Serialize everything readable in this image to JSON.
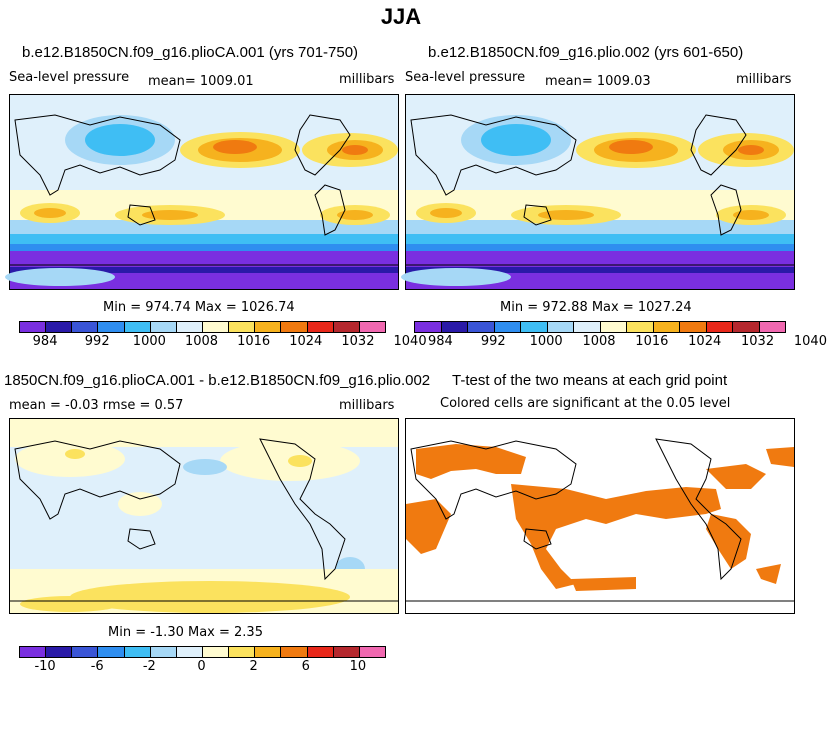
{
  "title": "JJA",
  "panels": [
    {
      "title": "b.e12.B1850CN.f09_g16.plioCA.001 (yrs 701-750)",
      "left_label": "Sea-level pressure",
      "mean_label": "mean= 1009.01",
      "units": "millibars",
      "minmax": "Min = 974.74 Max = 1026.74",
      "colorbar_ticks": [
        "984",
        "992",
        "1000",
        "1008",
        "1016",
        "1024",
        "1032",
        "1040"
      ]
    },
    {
      "title": "b.e12.B1850CN.f09_g16.plio.002 (yrs 601-650)",
      "left_label": "Sea-level pressure",
      "mean_label": "mean= 1009.03",
      "units": "millibars",
      "minmax": "Min = 972.88 Max = 1027.24",
      "colorbar_ticks": [
        "984",
        "992",
        "1000",
        "1008",
        "1016",
        "1024",
        "1032",
        "1040"
      ]
    },
    {
      "title": "1850CN.f09_g16.plioCA.001 - b.e12.B1850CN.f09_g16.plio.002",
      "left_label": "mean =   -0.03     rmse =     0.57",
      "units": "millibars",
      "minmax": "Min =  -1.30  Max =    2.35",
      "colorbar_ticks": [
        "-10",
        "-6",
        "-2",
        "0",
        "2",
        "6",
        "10"
      ]
    },
    {
      "title": "T-test of the two means at each grid point",
      "subtitle": "Colored cells are significant at the 0.05 level"
    }
  ],
  "colors": {
    "slp_bar": [
      "#7a2fe0",
      "#2a1aa8",
      "#3a55d6",
      "#2f8ef0",
      "#3fbef4",
      "#a6d8f6",
      "#dff0fb",
      "#fffbd0",
      "#fbe25e",
      "#f6b21e",
      "#f07a10",
      "#e8281a",
      "#b5282e",
      "#f068b0"
    ],
    "diff_bar": [
      "#7a2fe0",
      "#2a1aa8",
      "#3a55d6",
      "#2f8ef0",
      "#3fbef4",
      "#a6d8f6",
      "#dff0fb",
      "#fffbd0",
      "#fbe25e",
      "#f6b21e",
      "#f07a10",
      "#e8281a",
      "#b5282e",
      "#f068b0"
    ],
    "significance": "#f07a10"
  },
  "chart_data": [
    {
      "type": "heatmap",
      "title": "b.e12.B1850CN.f09_g16.plioCA.001 (yrs 701-750)",
      "field": "Sea-level pressure",
      "units": "millibars",
      "mean": 1009.01,
      "min": 974.74,
      "max": 1026.74,
      "levels": [
        984,
        992,
        1000,
        1008,
        1016,
        1024,
        1032,
        1040
      ]
    },
    {
      "type": "heatmap",
      "title": "b.e12.B1850CN.f09_g16.plio.002 (yrs 601-650)",
      "field": "Sea-level pressure",
      "units": "millibars",
      "mean": 1009.03,
      "min": 972.88,
      "max": 1027.24,
      "levels": [
        984,
        992,
        1000,
        1008,
        1016,
        1024,
        1032,
        1040
      ]
    },
    {
      "type": "heatmap",
      "title": "1850CN.f09_g16.plioCA.001 - b.e12.B1850CN.f09_g16.plio.002",
      "units": "millibars",
      "mean": -0.03,
      "rmse": 0.57,
      "min": -1.3,
      "max": 2.35,
      "levels": [
        -10,
        -6,
        -2,
        0,
        2,
        6,
        10
      ]
    },
    {
      "type": "heatmap",
      "title": "T-test of the two means at each grid point",
      "subtitle": "Colored cells are significant at the 0.05 level"
    }
  ]
}
